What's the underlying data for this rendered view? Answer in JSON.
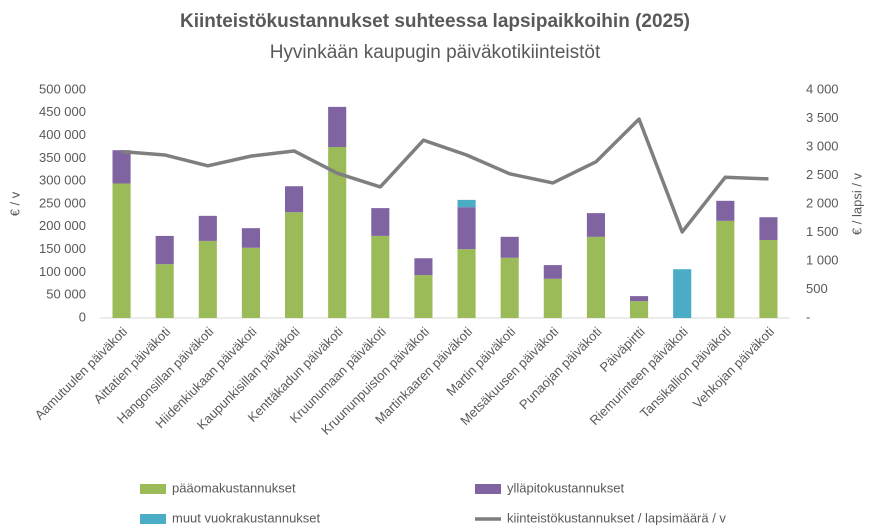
{
  "chart_data": {
    "type": "bar",
    "title": "Kiinteistökustannukset suhteessa lapsipaikkoihin (2025)",
    "subtitle": "Hyvinkään kaupugin päiväkotikiinteistöt",
    "y_label": "€ / v",
    "y2_label": "€ / lapsi / v",
    "stacked": true,
    "grid": false,
    "legend": "bottom",
    "categories": [
      "Aamutuulen päiväkoti",
      "Aittatien päiväkoti",
      "Hangonsillan päiväkoti",
      "Hiidenkiukaan päiväkoti",
      "Kaupunkisillan päiväkoti",
      "Kenttäkadun päiväkoti",
      "Kruunumaan päiväkoti",
      "Kruununpuiston päiväkoti",
      "Martinkaaren päiväkoti",
      "Martin päiväkoti",
      "Metsäkuusen päiväkoti",
      "Punaojan päiväkoti",
      "Päiväpirtti",
      "Riemurinteen päiväkoti",
      "Tansikallion päiväkoti",
      "Vehkojan päiväkoti"
    ],
    "series": [
      {
        "name": "pääomakustannukset",
        "type": "bar",
        "color": "#9bbb59",
        "values": [
          295000,
          118000,
          169000,
          154000,
          232000,
          375000,
          180000,
          94000,
          151000,
          132000,
          86000,
          178000,
          37000,
          0,
          213000,
          171000
        ]
      },
      {
        "name": "ylläpitokustannukset",
        "type": "bar",
        "color": "#8064a2",
        "values": [
          73000,
          62000,
          55000,
          43000,
          57000,
          88000,
          61000,
          37000,
          92000,
          46000,
          30000,
          52000,
          11000,
          0,
          44000,
          50000
        ]
      },
      {
        "name": "muut vuokrakustannukset",
        "type": "bar",
        "color": "#4bacc6",
        "values": [
          0,
          0,
          0,
          0,
          0,
          0,
          0,
          0,
          16000,
          0,
          0,
          0,
          0,
          107000,
          0,
          0
        ]
      },
      {
        "name": "kiinteistökustannukset / lapsimäärä / v",
        "type": "line",
        "axis": "y2",
        "color": "#7f7f7f",
        "values": [
          2920,
          2860,
          2670,
          2840,
          2930,
          2540,
          2300,
          3120,
          2860,
          2530,
          2370,
          2740,
          3490,
          1510,
          2470,
          2440
        ]
      }
    ],
    "ylim": [
      0,
      500000
    ],
    "yticks": [
      0,
      {
        "value": 50000,
        "label": "50 000"
      },
      {
        "value": 100000,
        "label": "100 000"
      },
      {
        "value": 150000,
        "label": "150 000"
      },
      {
        "value": 200000,
        "label": "200 000"
      },
      {
        "value": 250000,
        "label": "250 000"
      },
      {
        "value": 300000,
        "label": "300 000"
      },
      {
        "value": 350000,
        "label": "350 000"
      },
      {
        "value": 400000,
        "label": "400 000"
      },
      {
        "value": 450000,
        "label": "450 000"
      },
      {
        "value": 500000,
        "label": "500 000"
      }
    ],
    "y2lim": [
      0,
      4000
    ],
    "y2ticks": [
      {
        "value": 0,
        "label": "-"
      },
      500,
      {
        "value": 1000,
        "label": "1 000"
      },
      {
        "value": 1500,
        "label": "1 500"
      },
      {
        "value": 2000,
        "label": "2 000"
      },
      {
        "value": 2500,
        "label": "2 500"
      },
      {
        "value": 3000,
        "label": "3 000"
      },
      {
        "value": 3500,
        "label": "3 500"
      },
      {
        "value": 4000,
        "label": "4 000"
      }
    ]
  }
}
